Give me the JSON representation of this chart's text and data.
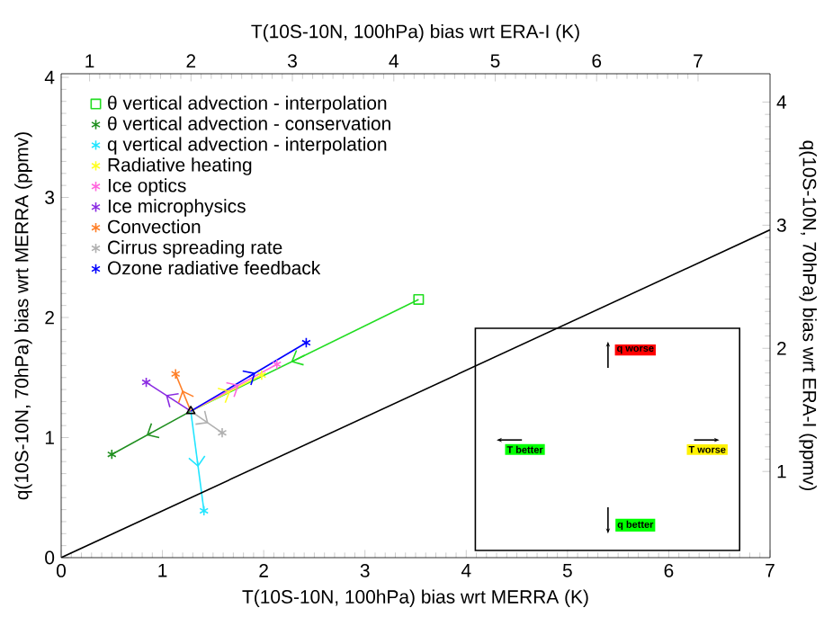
{
  "chart_data": {
    "type": "line",
    "xlabel": "T(10S-10N, 100hPa) bias wrt MERRA (K)",
    "ylabel": "q(10S-10N, 70hPa) bias wrt MERRA (ppmv)",
    "x2label": "T(10S-10N, 100hPa) bias wrt ERA-I (K)",
    "y2label": "q(10S-10N, 70hPa) bias wrt ERA-I (ppmv)",
    "xlim": [
      0,
      7
    ],
    "xticks": [
      0,
      1,
      2,
      3,
      4,
      5,
      6,
      7
    ],
    "ylim": [
      0,
      4.03
    ],
    "yticks": [
      0,
      1,
      2,
      3,
      4
    ],
    "x2lim": [
      0.72,
      7.71
    ],
    "x2ticks": [
      1,
      2,
      3,
      4,
      5,
      6,
      7
    ],
    "y2lim": [
      0.3,
      4.23
    ],
    "y2ticks": [
      1,
      2,
      3,
      4
    ],
    "legend": "top left",
    "line_style": "solid",
    "series": [
      {
        "name": "θ vertical advection - interpolation",
        "color": "#22dd22",
        "marker": "square",
        "x": [
          3.53,
          1.28
        ],
        "values": [
          2.15,
          1.22
        ]
      },
      {
        "name": "θ vertical advection - conservation",
        "color": "#1f8f1f",
        "marker": "cross",
        "x": [
          1.28,
          0.5
        ],
        "values": [
          1.22,
          0.86
        ]
      },
      {
        "name": "q vertical advection - interpolation",
        "color": "#22e5ff",
        "marker": "cross",
        "x": [
          1.28,
          1.41
        ],
        "values": [
          1.22,
          0.39
        ]
      },
      {
        "name": "Radiative heating",
        "color": "#ffff22",
        "marker": "cross",
        "x": [
          1.28,
          1.98
        ],
        "values": [
          1.22,
          1.52
        ]
      },
      {
        "name": "Ice optics",
        "color": "#ff66dd",
        "marker": "cross",
        "x": [
          1.28,
          2.13
        ],
        "values": [
          1.22,
          1.61
        ]
      },
      {
        "name": "Ice microphysics",
        "color": "#8a2be2",
        "marker": "cross",
        "x": [
          1.28,
          0.84
        ],
        "values": [
          1.22,
          1.46
        ]
      },
      {
        "name": "Convection",
        "color": "#ff7f27",
        "marker": "cross",
        "x": [
          1.28,
          1.13
        ],
        "values": [
          1.22,
          1.53
        ]
      },
      {
        "name": "Cirrus spreading rate",
        "color": "#b0b0b0",
        "marker": "cross",
        "x": [
          1.28,
          1.59
        ],
        "values": [
          1.22,
          1.04
        ]
      },
      {
        "name": "Ozone radiative feedback",
        "color": "#0000ff",
        "marker": "cross",
        "x": [
          1.28,
          2.42
        ],
        "values": [
          1.22,
          1.79
        ]
      },
      {
        "type": "scatter",
        "color": "#000000",
        "marker": "triangle",
        "x": [
          1.28
        ],
        "values": [
          1.22
        ]
      },
      {
        "color": "#000000",
        "marker": "none",
        "x": [
          0,
          7
        ],
        "values": [
          0,
          2.73
        ]
      }
    ],
    "annotations": [
      "q worse",
      "T better",
      "T worse",
      "q better"
    ]
  }
}
